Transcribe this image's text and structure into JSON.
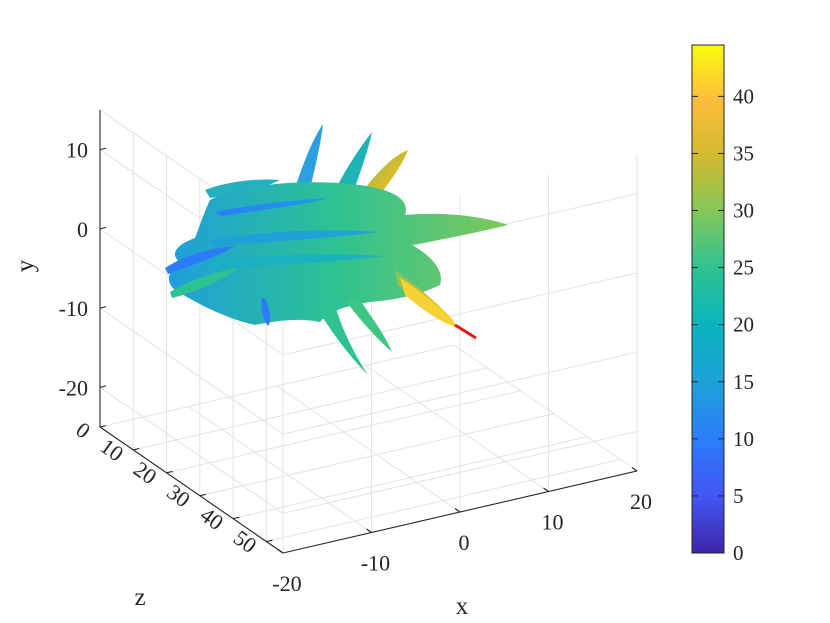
{
  "chart_data": {
    "type": "surface3d",
    "description": "3D radiation-pattern-like surface with spiky lobes, colored by magnitude",
    "axes": {
      "x": {
        "label": "x",
        "ticks": [
          "-20",
          "-10",
          "0",
          "10",
          "20"
        ],
        "range": [
          -20,
          20
        ]
      },
      "y": {
        "label": "y",
        "ticks": [
          "10",
          "0",
          "-10",
          "-20"
        ],
        "range": [
          -25,
          15
        ]
      },
      "z": {
        "label": "z",
        "ticks": [
          "0",
          "10",
          "20",
          "30",
          "40",
          "50"
        ],
        "range": [
          0,
          55
        ]
      }
    },
    "grid": true,
    "colorbar": {
      "colormap": "parula",
      "ticks": [
        "0",
        "5",
        "10",
        "15",
        "20",
        "25",
        "30",
        "35",
        "40"
      ],
      "range": [
        0,
        44.5
      ],
      "colors": [
        "#3e26a8",
        "#4255f3",
        "#2c7cfa",
        "#1e9fdb",
        "#0bb4bc",
        "#2ec292",
        "#80c85a",
        "#d0ba2f",
        "#fdbd3c",
        "#f9fb0e"
      ]
    },
    "annotation_line_color": "#e61919"
  }
}
